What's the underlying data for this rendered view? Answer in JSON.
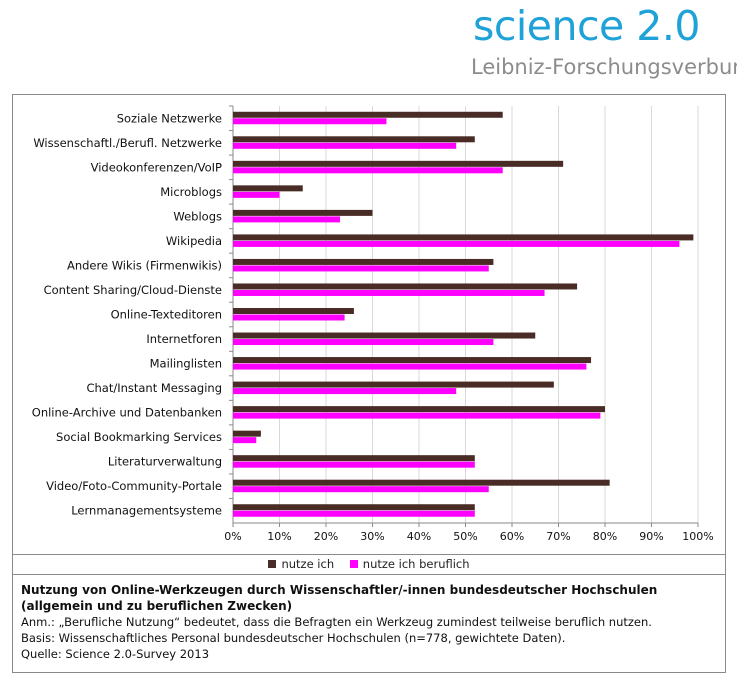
{
  "branding": {
    "title": "science 2.0",
    "subtitle": "Leibniz-Forschungsverbund"
  },
  "legend": [
    {
      "label": "nutze ich",
      "color": "#4a2c26"
    },
    {
      "label": "nutze ich beruflich",
      "color": "#ff00ff"
    }
  ],
  "caption": {
    "title_line1": "Nutzung von Online-Werkzeugen durch Wissenschaftler/-innen bundesdeutscher Hochschulen",
    "title_line2": "(allgemein und zu beruflichen Zwecken)",
    "note": "Anm.: „Berufliche Nutzung“ bedeutet, dass die Befragten ein Werkzeug zumindest teilweise beruflich nutzen.",
    "basis": "Basis: Wissenschaftliches Personal bundesdeutscher Hochschulen (n=778, gewichtete Daten).",
    "source": "Quelle: Science 2.0-Survey 2013"
  },
  "chart_data": {
    "type": "bar",
    "orientation": "horizontal",
    "categories": [
      "Soziale Netzwerke",
      "Wissenschaftl./Berufl. Netzwerke",
      "Videokonferenzen/VoIP",
      "Microblogs",
      "Weblogs",
      "Wikipedia",
      "Andere Wikis (Firmenwikis)",
      "Content Sharing/Cloud-Dienste",
      "Online-Texteditoren",
      "Internetforen",
      "Mailinglisten",
      "Chat/Instant Messaging",
      "Online-Archive und Datenbanken",
      "Social Bookmarking Services",
      "Literaturverwaltung",
      "Video/Foto-Community-Portale",
      "Lernmanagementsysteme"
    ],
    "series": [
      {
        "name": "nutze ich",
        "color": "#4a2c26",
        "values": [
          58,
          52,
          71,
          15,
          30,
          99,
          56,
          74,
          26,
          65,
          77,
          69,
          80,
          6,
          52,
          81,
          52
        ]
      },
      {
        "name": "nutze ich beruflich",
        "color": "#ff00ff",
        "values": [
          33,
          48,
          58,
          10,
          23,
          96,
          55,
          67,
          24,
          56,
          76,
          48,
          79,
          5,
          52,
          55,
          52
        ]
      }
    ],
    "xlim": [
      0,
      100
    ],
    "xticks": [
      "0%",
      "10%",
      "20%",
      "30%",
      "40%",
      "50%",
      "60%",
      "70%",
      "80%",
      "90%",
      "100%"
    ],
    "grid": true,
    "legend_position": "bottom"
  }
}
